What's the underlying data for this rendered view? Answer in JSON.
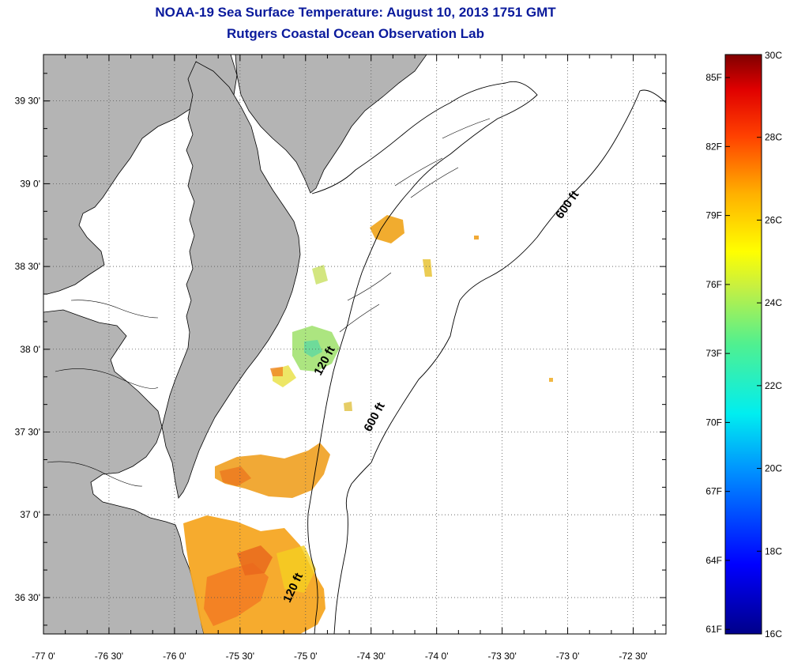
{
  "header": {
    "title": "NOAA-19 Sea Surface Temperature:  August 10, 2013 1751 GMT",
    "subtitle": "Rutgers Coastal Ocean Observation Lab"
  },
  "map": {
    "lon_range": [
      -77.0,
      -72.25
    ],
    "lat_range": [
      36.28,
      39.78
    ],
    "land_color": "#b4b4b4",
    "water_color": "#ffffff",
    "grid": "dotted",
    "lon_ticks": [
      {
        "value": -77.0,
        "label": "-77 0'"
      },
      {
        "value": -76.5,
        "label": "-76 30'"
      },
      {
        "value": -76.0,
        "label": "-76 0'"
      },
      {
        "value": -75.5,
        "label": "-75 30'"
      },
      {
        "value": -75.0,
        "label": "-75 0'"
      },
      {
        "value": -74.5,
        "label": "-74 30'"
      },
      {
        "value": -74.0,
        "label": "-74 0'"
      },
      {
        "value": -73.5,
        "label": "-73 30'"
      },
      {
        "value": -73.0,
        "label": "-73 0'"
      },
      {
        "value": -72.5,
        "label": "-72 30'"
      }
    ],
    "lat_ticks": [
      {
        "value": 39.5,
        "label": "39 30'"
      },
      {
        "value": 39.0,
        "label": "39 0'"
      },
      {
        "value": 38.5,
        "label": "38 30'"
      },
      {
        "value": 38.0,
        "label": "38 0'"
      },
      {
        "value": 37.5,
        "label": "37 30'"
      },
      {
        "value": 37.0,
        "label": "37 0'"
      },
      {
        "value": 36.5,
        "label": "36 30'"
      }
    ],
    "contour_labels": [
      {
        "text": "120 ft",
        "lon": -74.83,
        "lat": 37.92,
        "rotate": -62
      },
      {
        "text": "600 ft",
        "lon": -74.45,
        "lat": 37.58,
        "rotate": -62
      },
      {
        "text": "600 ft",
        "lon": -72.98,
        "lat": 38.86,
        "rotate": -55
      },
      {
        "text": "120 ft",
        "lon": -75.07,
        "lat": 36.55,
        "rotate": -65
      }
    ]
  },
  "colorbar": {
    "max_label": "30C",
    "min_label": "16C",
    "celsius_ticks": [
      {
        "value": 28,
        "label": "28C"
      },
      {
        "value": 26,
        "label": "26C"
      },
      {
        "value": 24,
        "label": "24C"
      },
      {
        "value": 22,
        "label": "22C"
      },
      {
        "value": 20,
        "label": "20C"
      },
      {
        "value": 18,
        "label": "18C"
      }
    ],
    "fahrenheit_ticks": [
      {
        "value": 85,
        "label": "85F"
      },
      {
        "value": 82,
        "label": "82F"
      },
      {
        "value": 79,
        "label": "79F"
      },
      {
        "value": 76,
        "label": "76F"
      },
      {
        "value": 73,
        "label": "73F"
      },
      {
        "value": 70,
        "label": "70F"
      },
      {
        "value": 67,
        "label": "67F"
      },
      {
        "value": 64,
        "label": "64F"
      },
      {
        "value": 61,
        "label": "61F"
      }
    ],
    "range_c": [
      16,
      30
    ]
  },
  "chart_data": {
    "type": "heatmap",
    "title": "NOAA-19 Sea Surface Temperature:  August 10, 2013 1751 GMT",
    "subtitle": "Rutgers Coastal Ocean Observation Lab",
    "units": "C",
    "value_range": [
      16,
      30
    ],
    "observations": [
      {
        "lon": -75.55,
        "lat": 36.58,
        "sst_c": 26.8
      },
      {
        "lon": -75.35,
        "lat": 36.7,
        "sst_c": 26.2
      },
      {
        "lon": -75.2,
        "lat": 36.8,
        "sst_c": 25.6
      },
      {
        "lon": -75.45,
        "lat": 37.22,
        "sst_c": 26.2
      },
      {
        "lon": -75.1,
        "lat": 37.3,
        "sst_c": 25.2
      },
      {
        "lon": -74.97,
        "lat": 37.98,
        "sst_c": 23.8
      },
      {
        "lon": -75.15,
        "lat": 37.85,
        "sst_c": 24.6
      },
      {
        "lon": -74.55,
        "lat": 38.7,
        "sst_c": 25.8
      },
      {
        "lon": -74.25,
        "lat": 38.52,
        "sst_c": 25.0
      }
    ]
  }
}
